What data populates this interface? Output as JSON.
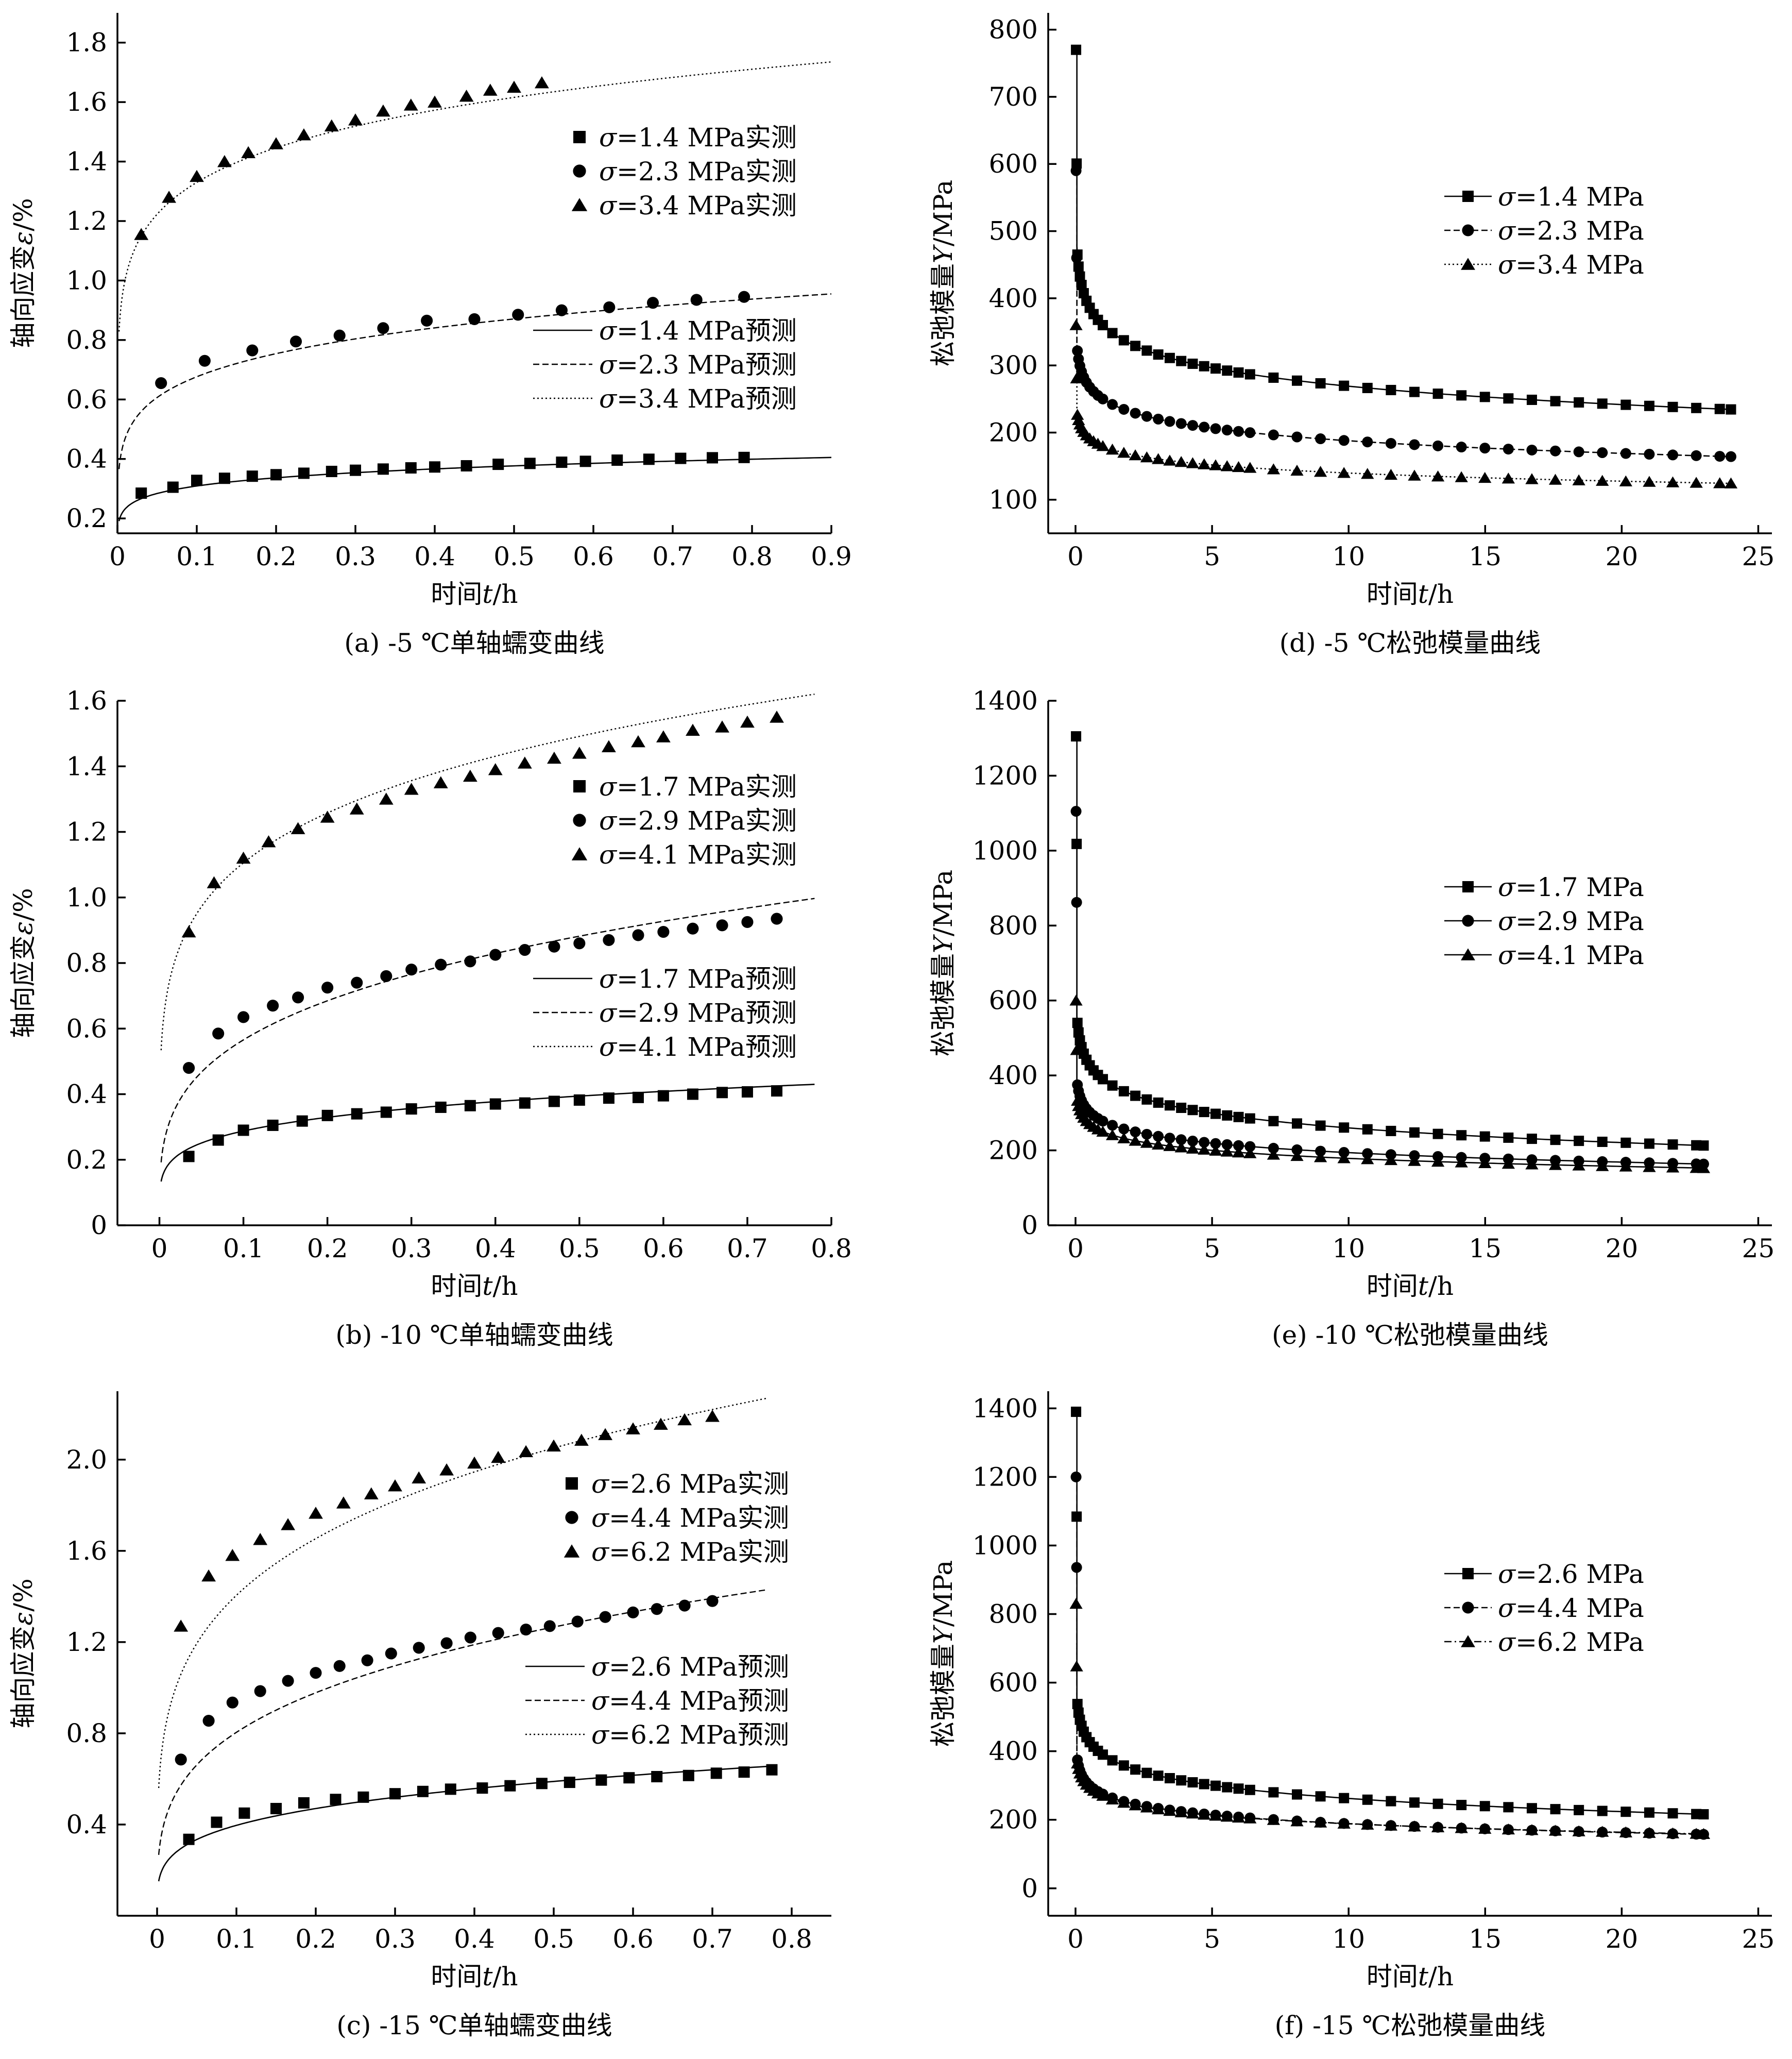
{
  "chart_data": [
    {
      "type": "scatter",
      "panel": "a",
      "caption": "(a) -5 ℃单轴蠕变曲线",
      "xlabel": "时间t/h",
      "ylabel": "轴向应变ε/%",
      "xlim": [
        0,
        0.9
      ],
      "ylim": [
        0.15,
        1.9
      ],
      "xticks": [
        0,
        0.1,
        0.2,
        0.3,
        0.4,
        0.5,
        0.6,
        0.7,
        0.8,
        0.9
      ],
      "xtick_labels": [
        "0",
        "0.1",
        "0.2",
        "0.3",
        "0.4",
        "0.5",
        "0.6",
        "0.7",
        "0.8",
        "0.9"
      ],
      "yticks": [
        0.2,
        0.4,
        0.6,
        0.8,
        1.0,
        1.2,
        1.4,
        1.6,
        1.8
      ],
      "ytick_labels": [
        "0.2",
        "0.4",
        "0.6",
        "0.8",
        "1.0",
        "1.2",
        "1.4",
        "1.6",
        "1.8"
      ],
      "legend_measured": [
        "σ=1.4 MPa实测",
        "σ=2.3 MPa实测",
        "σ=3.4 MPa实测"
      ],
      "legend_predicted": [
        "σ=1.4 MPa预测",
        "σ=2.3 MPa预测",
        "σ=3.4 MPa预测"
      ],
      "measured": [
        {
          "marker": "square",
          "x": [
            0.03,
            0.07,
            0.1,
            0.135,
            0.17,
            0.2,
            0.235,
            0.27,
            0.3,
            0.335,
            0.37,
            0.4,
            0.44,
            0.48,
            0.52,
            0.56,
            0.59,
            0.63,
            0.67,
            0.71,
            0.75,
            0.79
          ],
          "y": [
            0.285,
            0.305,
            0.328,
            0.335,
            0.342,
            0.347,
            0.352,
            0.358,
            0.362,
            0.366,
            0.37,
            0.373,
            0.377,
            0.382,
            0.385,
            0.389,
            0.392,
            0.396,
            0.399,
            0.402,
            0.404,
            0.405
          ]
        },
        {
          "marker": "circle",
          "x": [
            0.055,
            0.11,
            0.17,
            0.225,
            0.28,
            0.335,
            0.39,
            0.45,
            0.505,
            0.56,
            0.62,
            0.675,
            0.73,
            0.79
          ],
          "y": [
            0.655,
            0.73,
            0.765,
            0.795,
            0.815,
            0.84,
            0.865,
            0.87,
            0.885,
            0.9,
            0.91,
            0.925,
            0.935,
            0.945
          ]
        },
        {
          "marker": "triangle",
          "x": [
            0.03,
            0.065,
            0.1,
            0.135,
            0.165,
            0.2,
            0.235,
            0.27,
            0.3,
            0.335,
            0.37,
            0.4,
            0.44,
            0.47,
            0.5,
            0.535
          ],
          "y": [
            1.155,
            1.28,
            1.35,
            1.4,
            1.43,
            1.46,
            1.49,
            1.52,
            1.54,
            1.57,
            1.59,
            1.6,
            1.62,
            1.64,
            1.65,
            1.665
          ]
        }
      ],
      "predicted": [
        {
          "style": "solid",
          "x0": 0.002,
          "x1": 0.9,
          "a": 0.405,
          "n": 0.123
        },
        {
          "style": "dashed",
          "x0": 0.002,
          "x1": 0.9,
          "a": 0.955,
          "n": 0.157
        },
        {
          "style": "dotted",
          "x0": 0.002,
          "x1": 0.9,
          "a": 1.735,
          "n": 0.121
        }
      ]
    },
    {
      "type": "scatter",
      "panel": "b",
      "caption": "(b) -10 ℃单轴蠕变曲线",
      "xlabel": "时间t/h",
      "ylabel": "轴向应变ε/%",
      "xlim": [
        -0.05,
        0.8
      ],
      "ylim": [
        0,
        1.6
      ],
      "xticks": [
        0,
        0.1,
        0.2,
        0.3,
        0.4,
        0.5,
        0.6,
        0.7,
        0.8
      ],
      "xtick_labels": [
        "0",
        "0.1",
        "0.2",
        "0.3",
        "0.4",
        "0.5",
        "0.6",
        "0.7",
        "0.8"
      ],
      "yticks": [
        0,
        0.2,
        0.4,
        0.6,
        0.8,
        1.0,
        1.2,
        1.4,
        1.6
      ],
      "ytick_labels": [
        "0",
        "0.2",
        "0.4",
        "0.6",
        "0.8",
        "1.0",
        "1.2",
        "1.4",
        "1.6"
      ],
      "legend_measured": [
        "σ=1.7 MPa实测",
        "σ=2.9 MPa实测",
        "σ=4.1 MPa实测"
      ],
      "legend_predicted": [
        "σ=1.7 MPa预测",
        "σ=2.9 MPa预测",
        "σ=4.1 MPa预测"
      ],
      "measured": [
        {
          "marker": "square",
          "x": [
            0.035,
            0.07,
            0.1,
            0.135,
            0.17,
            0.2,
            0.235,
            0.27,
            0.3,
            0.335,
            0.37,
            0.4,
            0.435,
            0.47,
            0.5,
            0.535,
            0.57,
            0.6,
            0.635,
            0.67,
            0.7,
            0.735
          ],
          "y": [
            0.21,
            0.26,
            0.29,
            0.305,
            0.318,
            0.335,
            0.34,
            0.345,
            0.355,
            0.36,
            0.365,
            0.37,
            0.373,
            0.378,
            0.382,
            0.388,
            0.39,
            0.395,
            0.4,
            0.405,
            0.407,
            0.41
          ]
        },
        {
          "marker": "circle",
          "x": [
            0.035,
            0.07,
            0.1,
            0.135,
            0.165,
            0.2,
            0.235,
            0.27,
            0.3,
            0.335,
            0.37,
            0.4,
            0.435,
            0.47,
            0.5,
            0.535,
            0.57,
            0.6,
            0.635,
            0.67,
            0.7,
            0.735
          ],
          "y": [
            0.48,
            0.585,
            0.635,
            0.67,
            0.695,
            0.725,
            0.74,
            0.76,
            0.78,
            0.795,
            0.805,
            0.825,
            0.84,
            0.85,
            0.86,
            0.87,
            0.885,
            0.895,
            0.905,
            0.915,
            0.925,
            0.935
          ]
        },
        {
          "marker": "triangle",
          "x": [
            0.035,
            0.065,
            0.1,
            0.13,
            0.165,
            0.2,
            0.235,
            0.27,
            0.3,
            0.335,
            0.37,
            0.4,
            0.435,
            0.47,
            0.5,
            0.535,
            0.57,
            0.6,
            0.635,
            0.67,
            0.7,
            0.735
          ],
          "y": [
            0.895,
            1.045,
            1.12,
            1.17,
            1.21,
            1.245,
            1.27,
            1.3,
            1.33,
            1.35,
            1.37,
            1.39,
            1.41,
            1.425,
            1.44,
            1.46,
            1.475,
            1.49,
            1.51,
            1.52,
            1.535,
            1.55
          ]
        }
      ],
      "predicted": [
        {
          "style": "solid",
          "x0": 0.002,
          "x1": 0.78,
          "a": 0.43,
          "n": 0.196
        },
        {
          "style": "dashed",
          "x0": 0.002,
          "x1": 0.78,
          "a": 0.997,
          "n": 0.276
        },
        {
          "style": "dotted",
          "x0": 0.002,
          "x1": 0.78,
          "a": 1.62,
          "n": 0.186
        }
      ]
    },
    {
      "type": "scatter",
      "panel": "c",
      "caption": "(c) -15 ℃单轴蠕变曲线",
      "xlabel": "时间t/h",
      "ylabel": "轴向应变ε/%",
      "xlim": [
        -0.05,
        0.85
      ],
      "ylim": [
        0,
        2.3
      ],
      "xticks": [
        0,
        0.1,
        0.2,
        0.3,
        0.4,
        0.5,
        0.6,
        0.7,
        0.8
      ],
      "xtick_labels": [
        "0",
        "0.1",
        "0.2",
        "0.3",
        "0.4",
        "0.5",
        "0.6",
        "0.7",
        "0.8"
      ],
      "yticks": [
        0.4,
        0.8,
        1.2,
        1.6,
        2.0
      ],
      "ytick_labels": [
        "0.4",
        "0.8",
        "1.2",
        "1.6",
        "2.0"
      ],
      "legend_measured": [
        "σ=2.6 MPa实测",
        "σ=4.4 MPa实测",
        "σ=6.2 MPa实测"
      ],
      "legend_predicted": [
        "σ=2.6 MPa预测",
        "σ=4.4 MPa预测",
        "σ=6.2 MPa预测"
      ],
      "measured": [
        {
          "marker": "square",
          "x": [
            0.04,
            0.075,
            0.11,
            0.15,
            0.185,
            0.225,
            0.26,
            0.3,
            0.335,
            0.37,
            0.41,
            0.445,
            0.485,
            0.52,
            0.56,
            0.595,
            0.63,
            0.67,
            0.705,
            0.74,
            0.775
          ],
          "y": [
            0.335,
            0.41,
            0.45,
            0.47,
            0.495,
            0.51,
            0.52,
            0.535,
            0.545,
            0.555,
            0.56,
            0.57,
            0.58,
            0.585,
            0.595,
            0.605,
            0.61,
            0.615,
            0.625,
            0.63,
            0.64
          ]
        },
        {
          "marker": "circle",
          "x": [
            0.03,
            0.065,
            0.095,
            0.13,
            0.165,
            0.2,
            0.23,
            0.265,
            0.295,
            0.33,
            0.365,
            0.395,
            0.43,
            0.465,
            0.495,
            0.53,
            0.565,
            0.6,
            0.63,
            0.665,
            0.7
          ],
          "y": [
            0.685,
            0.855,
            0.935,
            0.985,
            1.03,
            1.065,
            1.095,
            1.12,
            1.15,
            1.175,
            1.195,
            1.22,
            1.24,
            1.255,
            1.27,
            1.29,
            1.31,
            1.33,
            1.345,
            1.36,
            1.38
          ]
        },
        {
          "marker": "triangle",
          "x": [
            0.03,
            0.065,
            0.095,
            0.13,
            0.165,
            0.2,
            0.235,
            0.27,
            0.3,
            0.33,
            0.365,
            0.4,
            0.43,
            0.465,
            0.5,
            0.535,
            0.565,
            0.6,
            0.635,
            0.665,
            0.7
          ],
          "y": [
            1.27,
            1.49,
            1.58,
            1.65,
            1.715,
            1.765,
            1.81,
            1.85,
            1.885,
            1.92,
            1.955,
            1.985,
            2.01,
            2.035,
            2.06,
            2.085,
            2.11,
            2.135,
            2.155,
            2.175,
            2.19
          ]
        }
      ],
      "predicted": [
        {
          "style": "solid",
          "x0": 0.002,
          "x1": 0.77,
          "a": 0.655,
          "n": 0.246
        },
        {
          "style": "dashed",
          "x0": 0.002,
          "x1": 0.77,
          "a": 1.43,
          "n": 0.282
        },
        {
          "style": "dotted",
          "x0": 0.002,
          "x1": 0.77,
          "a": 2.27,
          "n": 0.235
        }
      ]
    },
    {
      "type": "line",
      "panel": "d",
      "caption": "(d) -5 ℃松弛模量曲线",
      "xlabel": "时间t/h",
      "ylabel": "松弛模量Y/MPa",
      "xlim": [
        -1,
        25.5
      ],
      "ylim": [
        50,
        825
      ],
      "xticks": [
        0,
        5,
        10,
        15,
        20,
        25
      ],
      "xtick_labels": [
        "0",
        "5",
        "10",
        "15",
        "20",
        "25"
      ],
      "yticks": [
        100,
        200,
        300,
        400,
        500,
        600,
        700,
        800
      ],
      "ytick_labels": [
        "100",
        "200",
        "300",
        "400",
        "500",
        "600",
        "700",
        "800"
      ],
      "legend": [
        "σ=1.4 MPa",
        "σ=2.3 MPa",
        "σ=3.4 MPa"
      ],
      "series": [
        {
          "marker": "square",
          "line": "solid",
          "t_end": 24,
          "a": 360,
          "b": -39.5,
          "y0": 770
        },
        {
          "marker": "circle",
          "line": "dashed",
          "t_end": 24,
          "a": 250,
          "b": -27,
          "y0": 590
        },
        {
          "marker": "triangle",
          "line": "dotted",
          "t_end": 24,
          "a": 180,
          "b": -17.5,
          "y0": 360
        }
      ]
    },
    {
      "type": "line",
      "panel": "e",
      "caption": "(e) -10 ℃松弛模量曲线",
      "xlabel": "时间t/h",
      "ylabel": "松弛模量Y/MPa",
      "xlim": [
        -1,
        25.5
      ],
      "ylim": [
        0,
        1400
      ],
      "xticks": [
        0,
        5,
        10,
        15,
        20,
        25
      ],
      "xtick_labels": [
        "0",
        "5",
        "10",
        "15",
        "20",
        "25"
      ],
      "yticks": [
        0,
        200,
        400,
        600,
        800,
        1000,
        1200,
        1400
      ],
      "ytick_labels": [
        "0",
        "200",
        "400",
        "600",
        "800",
        "1000",
        "1200",
        "1400"
      ],
      "legend": [
        "σ=1.7 MPa",
        "σ=2.9 MPa",
        "σ=4.1 MPa"
      ],
      "series": [
        {
          "marker": "square",
          "line": "solid",
          "t_end": 23,
          "a": 390,
          "b": -56.5,
          "y0": 1305
        },
        {
          "marker": "circle",
          "line": "solid",
          "t_end": 23,
          "a": 278,
          "b": -36.5,
          "y0": 1105
        },
        {
          "marker": "triangle",
          "line": "solid",
          "t_end": 23,
          "a": 250,
          "b": -31,
          "y0": 600
        }
      ]
    },
    {
      "type": "line",
      "panel": "f",
      "caption": "(f) -15 ℃松弛模量曲线",
      "xlabel": "时间t/h",
      "ylabel": "松弛模量Y/MPa",
      "xlim": [
        -1,
        25.5
      ],
      "ylim": [
        -80,
        1450
      ],
      "xticks": [
        0,
        5,
        10,
        15,
        20,
        25
      ],
      "xtick_labels": [
        "0",
        "5",
        "10",
        "15",
        "20",
        "25"
      ],
      "yticks": [
        0,
        200,
        400,
        600,
        800,
        1000,
        1200,
        1400
      ],
      "ytick_labels": [
        "0",
        "200",
        "400",
        "600",
        "800",
        "1000",
        "1200",
        "1400"
      ],
      "legend": [
        "σ=2.6 MPa",
        "σ=4.4 MPa",
        "σ=6.2 MPa"
      ],
      "series": [
        {
          "marker": "square",
          "line": "solid",
          "t_end": 23,
          "a": 390,
          "b": -55.5,
          "y0": 1390
        },
        {
          "marker": "circle",
          "line": "dashed",
          "t_end": 23,
          "a": 275,
          "b": -37.5,
          "y0": 1200
        },
        {
          "marker": "triangle",
          "line": "dashdot",
          "t_end": 23,
          "a": 270,
          "b": -35.5,
          "y0": 830
        }
      ]
    }
  ]
}
